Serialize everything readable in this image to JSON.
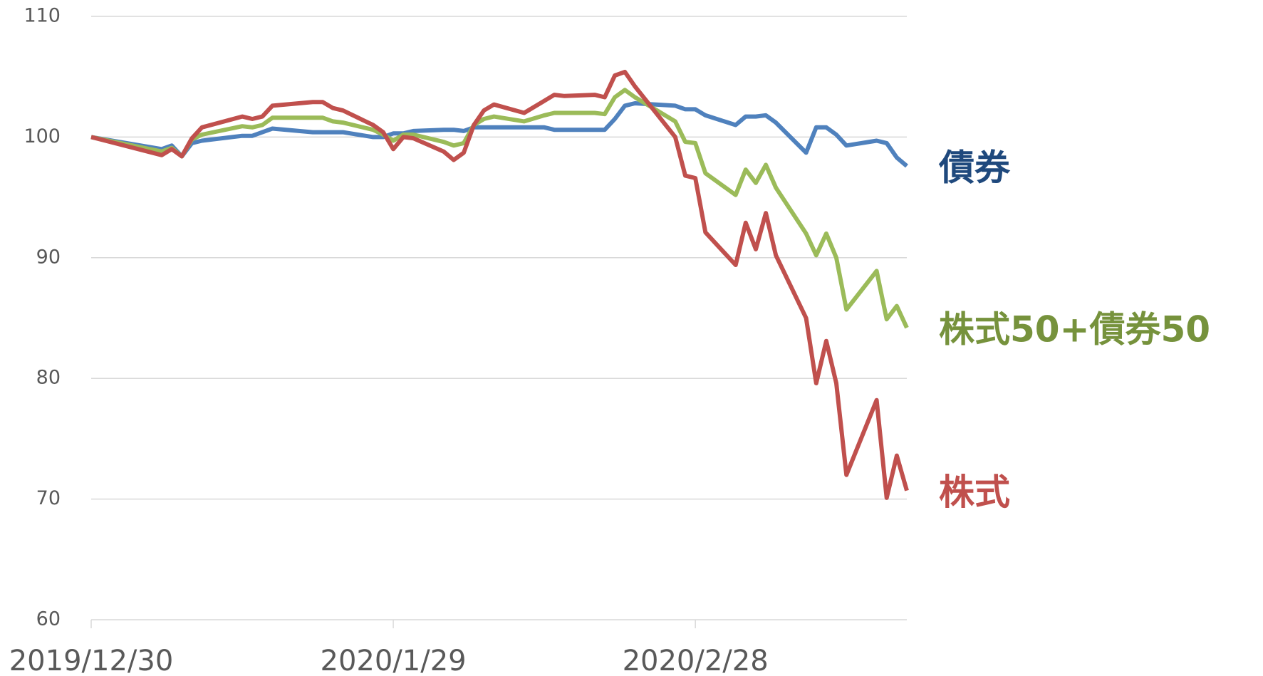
{
  "chart_data": {
    "type": "line",
    "x": [
      "2019/12/30",
      "2020/1/6",
      "2020/1/7",
      "2020/1/8",
      "2020/1/9",
      "2020/1/10",
      "2020/1/14",
      "2020/1/15",
      "2020/1/16",
      "2020/1/17",
      "2020/1/21",
      "2020/1/22",
      "2020/1/23",
      "2020/1/24",
      "2020/1/27",
      "2020/1/28",
      "2020/1/29",
      "2020/1/30",
      "2020/1/31",
      "2020/2/3",
      "2020/2/4",
      "2020/2/5",
      "2020/2/6",
      "2020/2/7",
      "2020/2/8",
      "2020/2/11",
      "2020/2/13",
      "2020/2/14",
      "2020/2/15",
      "2020/2/18",
      "2020/2/19",
      "2020/2/20",
      "2020/2/21",
      "2020/2/22",
      "2020/2/26",
      "2020/2/27",
      "2020/2/28",
      "2020/2/29",
      "2020/3/3",
      "2020/3/4",
      "2020/3/5",
      "2020/3/6",
      "2020/3/7",
      "2020/3/10",
      "2020/3/11",
      "2020/3/12",
      "2020/3/13",
      "2020/3/14",
      "2020/3/17",
      "2020/3/18",
      "2020/3/19",
      "2020/3/20"
    ],
    "series": [
      {
        "name": "債券",
        "color": "#4f81bd",
        "label_color": "#1f497d",
        "values": [
          100,
          99.0,
          99.3,
          98.4,
          99.5,
          99.7,
          100.1,
          100.1,
          100.4,
          100.7,
          100.4,
          100.4,
          100.4,
          100.4,
          100.0,
          100.0,
          100.3,
          100.3,
          100.5,
          100.6,
          100.6,
          100.5,
          100.8,
          100.8,
          100.8,
          100.8,
          100.8,
          100.6,
          100.6,
          100.6,
          100.6,
          101.5,
          102.6,
          102.8,
          102.6,
          102.3,
          102.3,
          101.8,
          101.0,
          101.7,
          101.7,
          101.8,
          101.2,
          98.7,
          100.8,
          100.8,
          100.2,
          99.3,
          99.7,
          99.5,
          98.3,
          97.6
        ]
      },
      {
        "name": "株式50+債券50",
        "color": "#9bbb59",
        "label_color": "#76923c",
        "values": [
          100,
          98.8,
          99.1,
          98.4,
          99.8,
          100.2,
          100.9,
          100.8,
          101.0,
          101.6,
          101.6,
          101.6,
          101.3,
          101.2,
          100.6,
          100.2,
          99.7,
          100.2,
          100.2,
          99.6,
          99.3,
          99.5,
          101.0,
          101.5,
          101.7,
          101.3,
          101.8,
          102.0,
          102.0,
          102.0,
          101.9,
          103.3,
          103.9,
          103.3,
          101.3,
          99.6,
          99.5,
          97.0,
          95.2,
          97.3,
          96.2,
          97.7,
          95.8,
          92.0,
          90.2,
          92.0,
          90.0,
          85.7,
          88.9,
          84.9,
          86.0,
          84.2
        ]
      },
      {
        "name": "株式",
        "color": "#c0504d",
        "label_color": "#c0504d",
        "values": [
          100,
          98.5,
          99.0,
          98.4,
          99.9,
          100.8,
          101.7,
          101.5,
          101.7,
          102.6,
          102.9,
          102.9,
          102.4,
          102.2,
          101.0,
          100.4,
          99.0,
          100.0,
          99.9,
          98.8,
          98.1,
          98.7,
          101.0,
          102.2,
          102.7,
          102.0,
          103.0,
          103.5,
          103.4,
          103.5,
          103.3,
          105.1,
          105.4,
          104.2,
          100.0,
          96.8,
          96.6,
          92.1,
          89.4,
          92.9,
          90.7,
          93.7,
          90.2,
          85.0,
          79.6,
          83.1,
          79.6,
          72.0,
          78.2,
          70.1,
          73.6,
          70.7
        ]
      }
    ],
    "xlim": [
      "2019/12/30",
      "2020/3/20"
    ],
    "xticks": [
      "2019/12/30",
      "2020/1/29",
      "2020/2/28"
    ],
    "ylim": [
      60,
      110
    ],
    "yticks": [
      60,
      70,
      80,
      90,
      100,
      110
    ],
    "grid": true
  }
}
